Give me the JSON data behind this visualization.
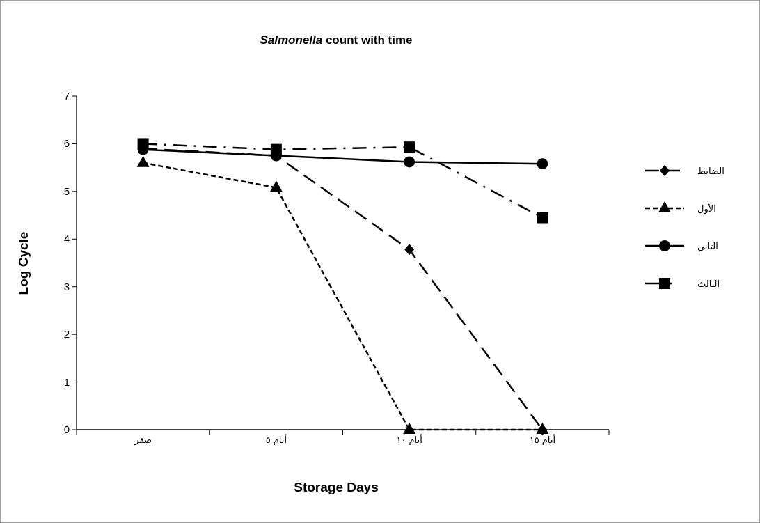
{
  "chart_data": {
    "type": "line",
    "title": "*Salmonella* count with time",
    "xlabel": "Storage Days",
    "ylabel": "Log Cycle",
    "categories": [
      "صفر",
      "أيام ٥",
      "أيام ١٠",
      "أيام ١٥"
    ],
    "ylim": [
      0,
      7
    ],
    "yticks": [
      0,
      1,
      2,
      3,
      4,
      5,
      6,
      7
    ],
    "legend": "right",
    "series": [
      {
        "name": "الضابط",
        "color": "#000000",
        "marker": "diamond",
        "line_style": "dashed",
        "values": [
          5.9,
          5.75,
          3.78,
          0
        ]
      },
      {
        "name": "الأول",
        "color": "#000000",
        "marker": "triangle",
        "line_style": "dotted",
        "values": [
          5.6,
          5.08,
          0,
          0
        ]
      },
      {
        "name": "الثاني",
        "color": "#000000",
        "marker": "circle",
        "line_style": "solid",
        "values": [
          5.88,
          5.75,
          5.62,
          5.58
        ]
      },
      {
        "name": "الثالث",
        "color": "#000000",
        "marker": "square",
        "line_style": "dashdot",
        "values": [
          6.0,
          5.88,
          5.93,
          4.45
        ]
      }
    ]
  }
}
